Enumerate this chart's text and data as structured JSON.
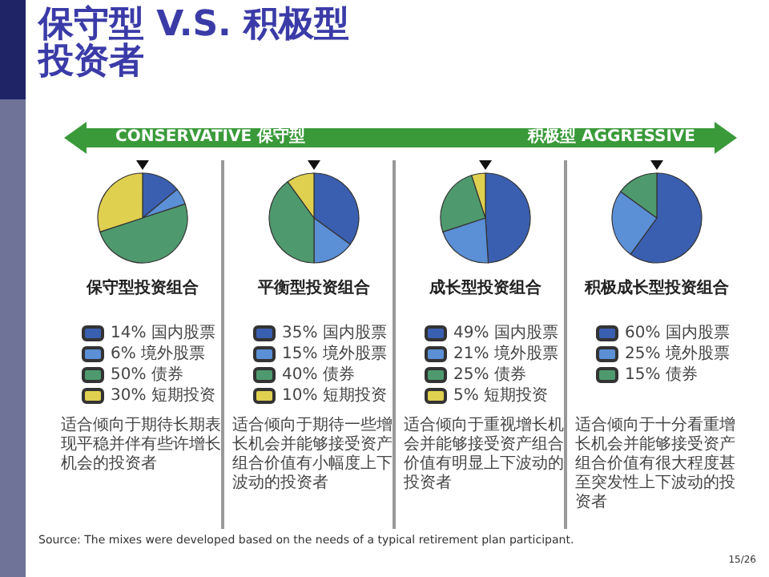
{
  "chart_data": [
    {
      "type": "other",
      "title": "保守型 V.S. 积极型投资者",
      "annotations": [
        "CONSERVATIVE 保守型",
        "积极型 AGGRESSIVE",
        "Source: The mixes were developed based on the needs of a typical retirement plan participant.",
        "15/26"
      ]
    },
    {
      "type": "pie",
      "title": "保守型投资组合",
      "categories": [
        "14% 国内股票",
        "6% 境外股票",
        "50% 债券",
        "30% 短期投资"
      ],
      "values": [
        14,
        6,
        50,
        30
      ],
      "colors": [
        "#3a5fb0",
        "#5b8fd6",
        "#4e9a6e",
        "#e0d050"
      ],
      "legend": "bottom",
      "annotations": [
        "适合倾向于期待长期表现平稳并伴有些许增长机会的投资者"
      ]
    },
    {
      "type": "pie",
      "title": "平衡型投资组合",
      "categories": [
        "35% 国内股票",
        "15% 境外股票",
        "40% 债券",
        "10% 短期投资"
      ],
      "values": [
        35,
        15,
        40,
        10
      ],
      "colors": [
        "#3a5fb0",
        "#5b8fd6",
        "#4e9a6e",
        "#e0d050"
      ],
      "legend": "bottom",
      "annotations": [
        "适合倾向于期待一些增长机会并能够接受资产组合价值有小幅度上下波动的投资者"
      ]
    },
    {
      "type": "pie",
      "title": "成长型投资组合",
      "categories": [
        "49% 国内股票",
        "21% 境外股票",
        "25% 债券",
        "5% 短期投资"
      ],
      "values": [
        49,
        21,
        25,
        5
      ],
      "colors": [
        "#3a5fb0",
        "#5b8fd6",
        "#4e9a6e",
        "#e0d050"
      ],
      "legend": "bottom",
      "annotations": [
        "适合倾向于重视增长机会并能够接受资产组合价值有明显上下波动的投资者"
      ]
    },
    {
      "type": "pie",
      "title": "积极成长型投资组合",
      "categories": [
        "60% 国内股票",
        "25% 境外股票",
        "15% 债券"
      ],
      "values": [
        60,
        25,
        15
      ],
      "colors": [
        "#3a5fb0",
        "#5b8fd6",
        "#4e9a6e"
      ],
      "legend": "bottom",
      "annotations": [
        "适合倾向于十分看重增长机会并能够接受资产组合价值有很大程度甚至突发性上下波动的投资者"
      ]
    }
  ]
}
